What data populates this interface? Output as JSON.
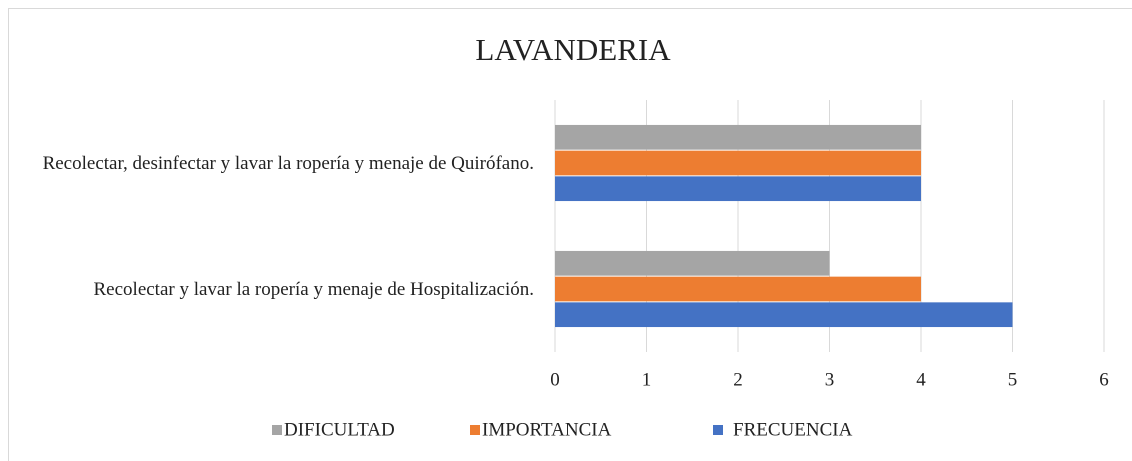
{
  "chart_data": {
    "type": "hbar",
    "title": "LAVANDERIA",
    "categories": [
      "Recolectar, desinfectar y lavar la ropería y menaje de Quirófano.",
      "Recolectar y lavar la ropería y menaje de Hospitalización."
    ],
    "series": [
      {
        "name": "DIFICULTAD",
        "color": "#a5a5a5",
        "values": [
          4,
          3
        ]
      },
      {
        "name": "IMPORTANCIA",
        "color": "#ed7d31",
        "values": [
          4,
          4
        ]
      },
      {
        "name": "FRECUENCIA",
        "color": "#4472c4",
        "values": [
          4,
          5
        ]
      }
    ],
    "xlim": [
      0,
      6
    ],
    "xticks": [
      0,
      1,
      2,
      3,
      4,
      5,
      6
    ],
    "grid": true,
    "legend": "bottom"
  }
}
